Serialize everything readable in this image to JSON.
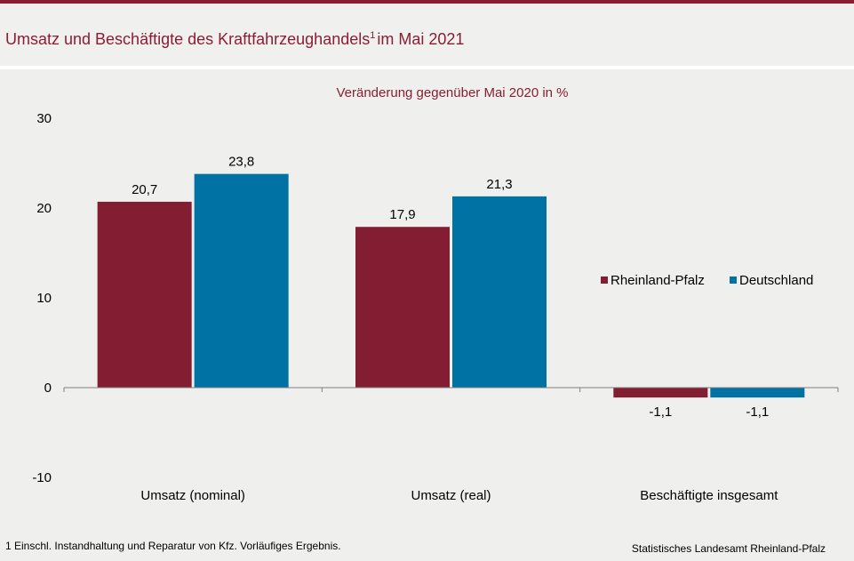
{
  "header": {
    "title": "Umsatz und Beschäftigte des Kraftfahrzeughandels",
    "title_sup": "1",
    "title_suffix": "im Mai 2021"
  },
  "footnote": "1 Einschl. Instandhaltung und Reparatur von Kfz. Vorläufiges Ergebnis.",
  "source": "Statistisches Landesamt Rheinland-Pfalz",
  "colors": {
    "accent": "#8b1e33",
    "rlp": "#831d32",
    "de": "#0072a3"
  },
  "chart_data": {
    "type": "bar",
    "title": "Veränderung gegenüber Mai 2020 in %",
    "xlabel": "",
    "ylabel": "",
    "ylim": [
      -10,
      30
    ],
    "yticks": [
      30,
      20,
      10,
      0,
      -10
    ],
    "categories": [
      "Umsatz (nominal)",
      "Umsatz (real)",
      "Beschäftigte insgesamt"
    ],
    "series": [
      {
        "name": "Rheinland-Pfalz",
        "values": [
          20.7,
          17.9,
          -1.1
        ],
        "labels": [
          "20,7",
          "17,9",
          "-1,1"
        ],
        "color": "#831d32"
      },
      {
        "name": "Deutschland",
        "values": [
          23.8,
          21.3,
          -1.1
        ],
        "labels": [
          "23,8",
          "21,3",
          "-1,1"
        ],
        "color": "#0072a3"
      }
    ],
    "legend": "right",
    "grid": false
  }
}
